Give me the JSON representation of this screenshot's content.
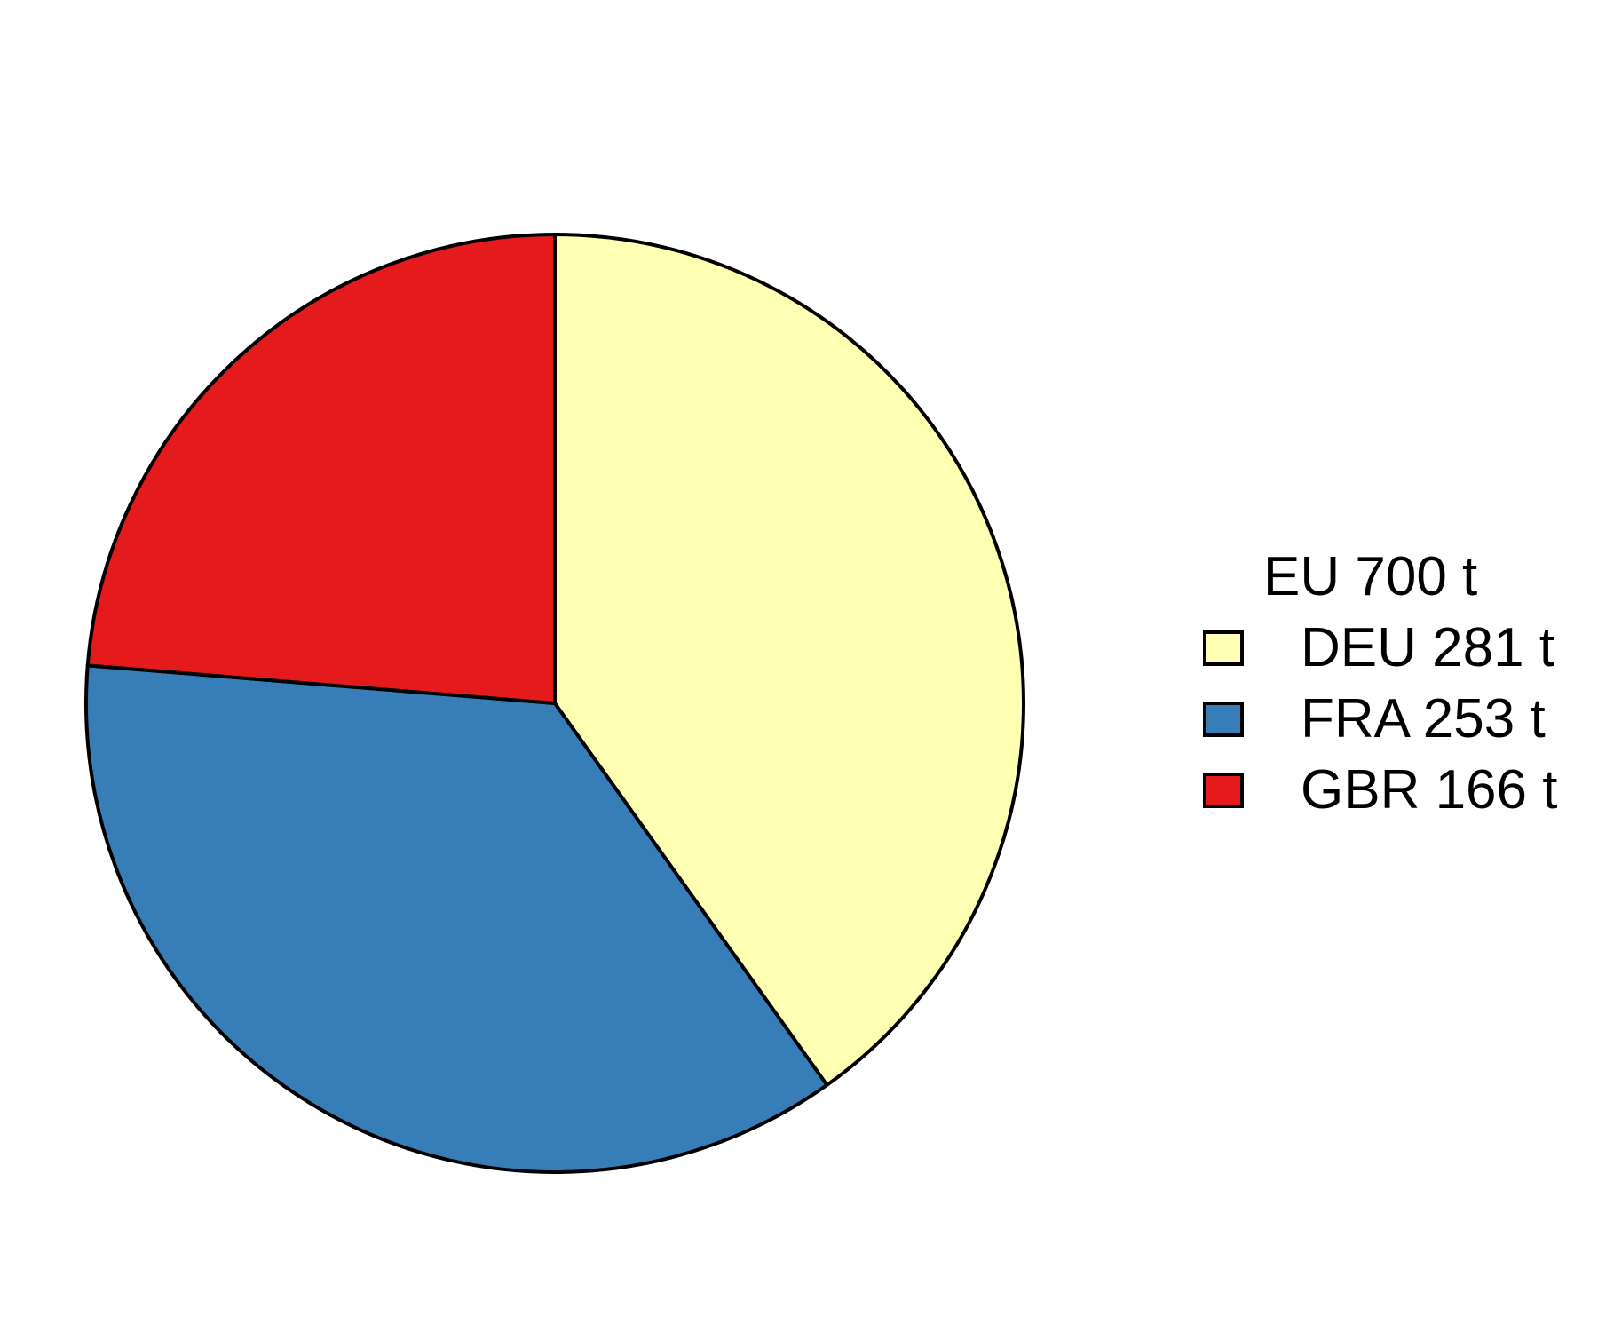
{
  "chart_data": {
    "type": "pie",
    "title": "",
    "legend_title": "EU 700 t",
    "legend_position": "right",
    "total": 700,
    "unit": "t",
    "slices": [
      {
        "label": "DEU 281 t",
        "name": "DEU",
        "value": 281,
        "color": "#ffffb3"
      },
      {
        "label": "FRA 253 t",
        "name": "FRA",
        "value": 253,
        "color": "#377eb8"
      },
      {
        "label": "GBR 166 t",
        "name": "GBR",
        "value": 166,
        "color": "#e41a1c"
      }
    ],
    "start_angle": "12 o'clock",
    "direction": "clockwise",
    "border_color": "#000000"
  }
}
